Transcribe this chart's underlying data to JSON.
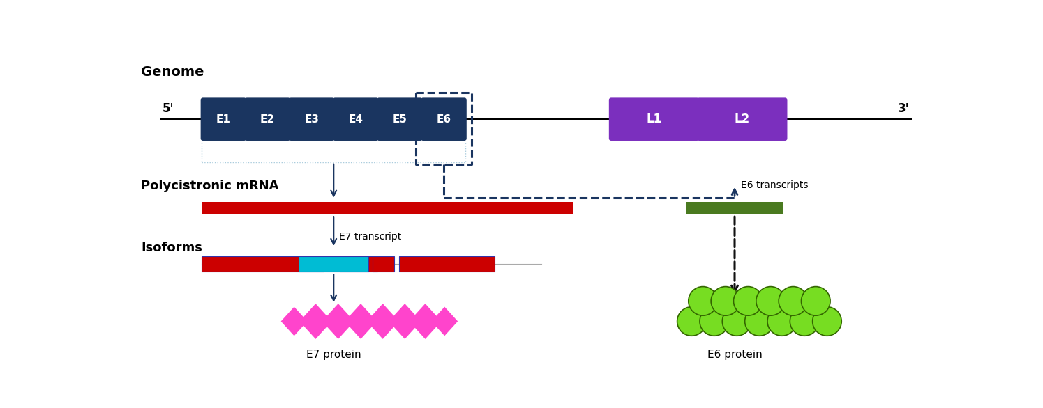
{
  "fig_width": 14.95,
  "fig_height": 5.86,
  "bg_color": "#ffffff",
  "early_color": "#1a3560",
  "late_color": "#7b2fbe",
  "dashed_box_color": "#1a3560",
  "mrna_color": "#cc0000",
  "e6_transcript_color": "#4a7a20",
  "isoform_red": "#cc0000",
  "isoform_cyan": "#00bcd4",
  "protein_pink": "#ff44cc",
  "protein_green": "#77dd22",
  "arrow_color": "#1a3560",
  "black_arrow_color": "#111111",
  "genome_label": "Genome",
  "mrna_label": "Polycistronic mRNA",
  "isoforms_label": "Isoforms",
  "e7_label": "E7 transcript",
  "e6_transcripts_label": "E6 transcripts",
  "e7_protein_label": "E7 protein",
  "e6_protein_label": "E6 protein",
  "five_prime": "5'",
  "three_prime": "3'",
  "early_exons": [
    "E1",
    "E2",
    "E3",
    "E4",
    "E5",
    "E6"
  ],
  "late_exons": [
    "L1",
    "L2"
  ]
}
